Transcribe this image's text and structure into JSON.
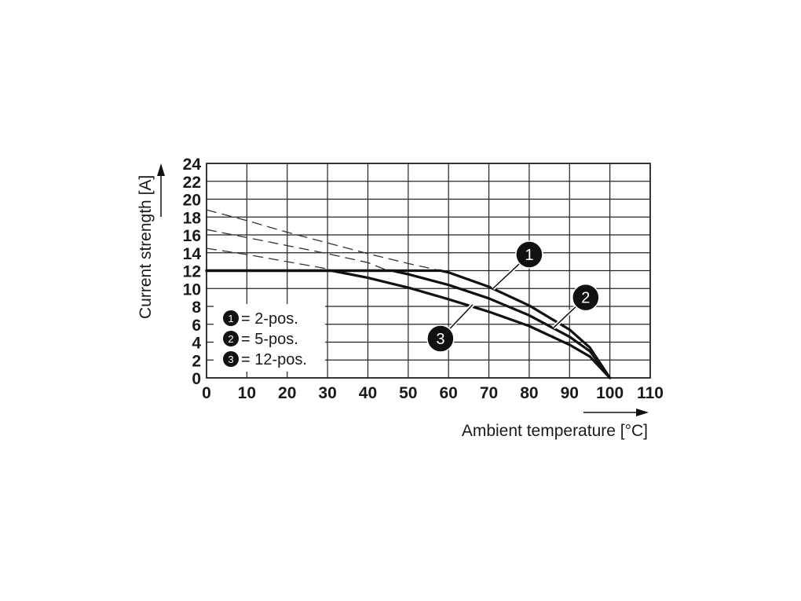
{
  "chart_data": {
    "type": "line",
    "title": "",
    "xlabel": "Ambient temperature [°C]",
    "ylabel": "Current strength [A]",
    "xlim": [
      0,
      110
    ],
    "ylim": [
      0,
      24
    ],
    "xticks": [
      "0",
      "10",
      "20",
      "30",
      "40",
      "50",
      "60",
      "70",
      "80",
      "90",
      "100",
      "110"
    ],
    "yticks": [
      "0",
      "2",
      "4",
      "6",
      "8",
      "10",
      "12",
      "14",
      "16",
      "18",
      "20",
      "22",
      "24"
    ],
    "grid": true,
    "legend_position": "bottom-left",
    "series": [
      {
        "id": "1",
        "name": "2-pos.",
        "legend_text": "= 2-pos.",
        "dashed": [
          [
            0,
            18.8
          ],
          [
            10,
            17.6
          ],
          [
            20,
            16.3
          ],
          [
            30,
            15.1
          ],
          [
            40,
            13.9
          ],
          [
            50,
            12.8
          ],
          [
            58,
            12.0
          ]
        ],
        "solid": [
          [
            0,
            12
          ],
          [
            58,
            12
          ],
          [
            60,
            11.8
          ],
          [
            70,
            10.2
          ],
          [
            80,
            8.1
          ],
          [
            90,
            5.4
          ],
          [
            95,
            3.4
          ],
          [
            100,
            0
          ]
        ],
        "label_anchor": [
          71,
          10.0
        ],
        "label_pos": [
          80,
          13.8
        ]
      },
      {
        "id": "2",
        "name": "5-pos.",
        "legend_text": "= 5-pos.",
        "dashed": [
          [
            0,
            16.6
          ],
          [
            10,
            15.7
          ],
          [
            20,
            14.8
          ],
          [
            30,
            13.9
          ],
          [
            40,
            12.9
          ],
          [
            45,
            12.0
          ]
        ],
        "solid": [
          [
            0,
            12
          ],
          [
            46,
            12
          ],
          [
            50,
            11.6
          ],
          [
            60,
            10.4
          ],
          [
            70,
            8.9
          ],
          [
            80,
            7.0
          ],
          [
            90,
            4.6
          ],
          [
            95,
            3.0
          ],
          [
            100,
            0
          ]
        ],
        "label_anchor": [
          86,
          5.6
        ],
        "label_pos": [
          94,
          9.0
        ]
      },
      {
        "id": "3",
        "name": "12-pos.",
        "legend_text": "= 12-pos.",
        "dashed": [
          [
            0,
            14.5
          ],
          [
            10,
            13.8
          ],
          [
            20,
            13.0
          ],
          [
            30,
            12.2
          ],
          [
            31,
            12.0
          ]
        ],
        "solid": [
          [
            0,
            12
          ],
          [
            31,
            12
          ],
          [
            40,
            11.2
          ],
          [
            50,
            10.1
          ],
          [
            60,
            8.8
          ],
          [
            70,
            7.4
          ],
          [
            80,
            5.8
          ],
          [
            90,
            3.7
          ],
          [
            95,
            2.4
          ],
          [
            100,
            0
          ]
        ],
        "label_anchor": [
          66,
          8.2
        ],
        "label_pos": [
          58,
          4.4
        ]
      }
    ]
  }
}
